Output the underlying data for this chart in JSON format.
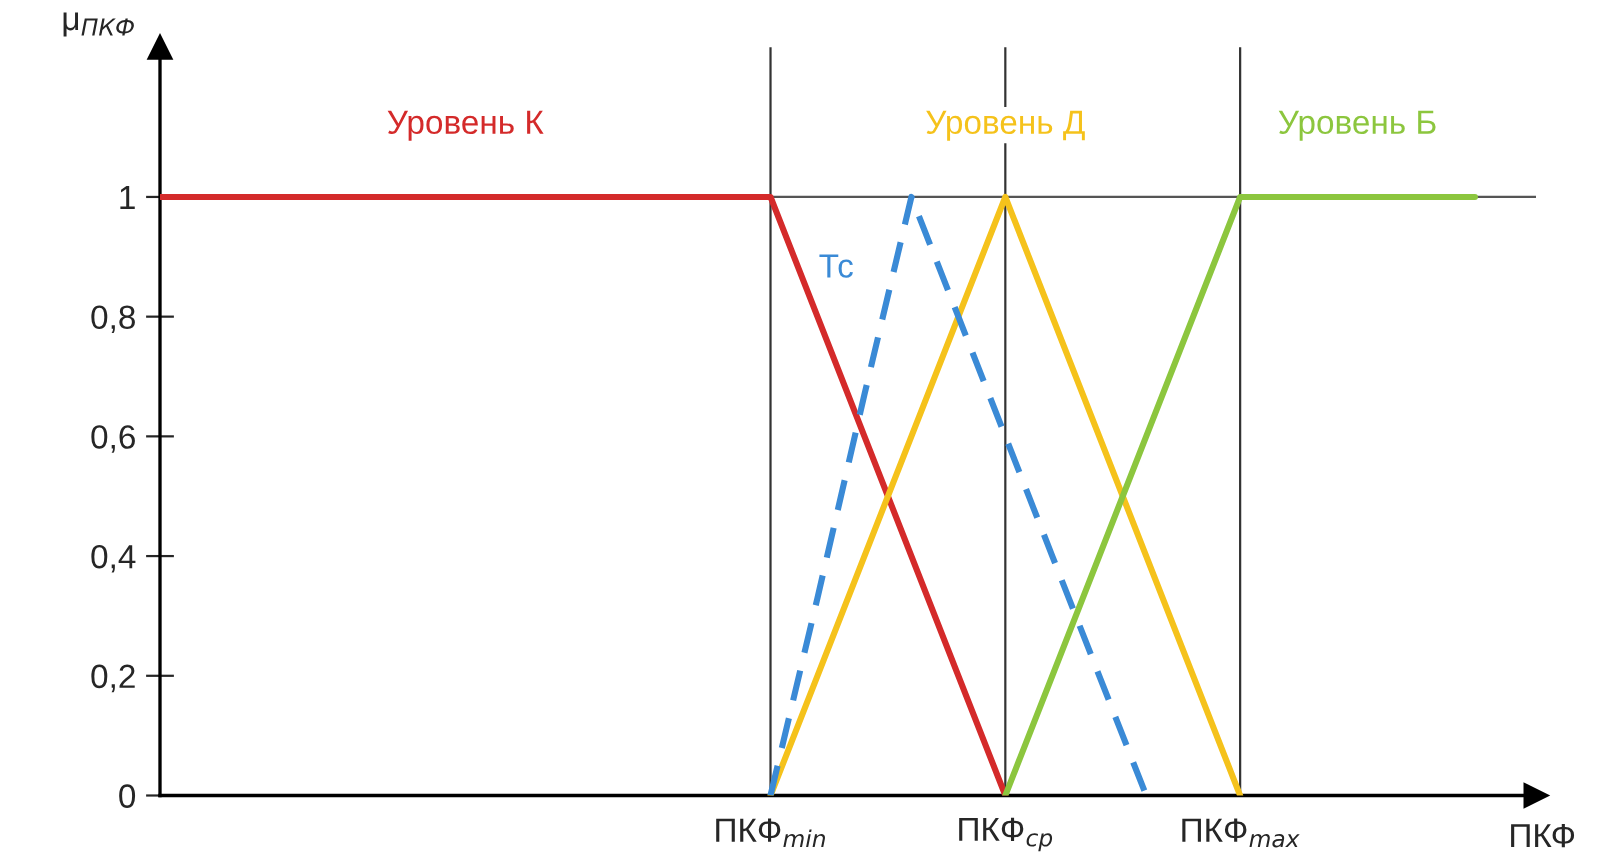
{
  "chart_data": {
    "type": "line",
    "ylabel": "μ$_{ПКФ}$",
    "xlabel": "ПКФ",
    "categories": [
      null,
      null,
      null,
      null,
      null,
      null,
      null,
      null,
      null,
      null,
      null,
      null,
      null,
      "ПКФ$_{min}$",
      null,
      null,
      null,
      null,
      "ПКФ$_{ср}$",
      null,
      null,
      null,
      null,
      "ПКФ$_{max}$",
      null,
      null,
      null,
      null,
      null
    ],
    "series": [
      {
        "name": "Уровень К",
        "color": "#d42a2a",
        "values": [
          1,
          1,
          1,
          1,
          1,
          1,
          1,
          1,
          1,
          1,
          1,
          1,
          1,
          1,
          0.8,
          0.6,
          0.4,
          0.2,
          0,
          null,
          null,
          null,
          null,
          null,
          null,
          null,
          null,
          null,
          null
        ]
      },
      {
        "name": "Уровень Д",
        "color": "#f5c21b",
        "values": [
          null,
          null,
          null,
          null,
          null,
          null,
          null,
          null,
          null,
          null,
          null,
          null,
          null,
          0,
          0.2,
          0.4,
          0.6,
          0.8,
          1,
          0.8,
          0.6,
          0.4,
          0.2,
          0,
          null,
          null,
          null,
          null,
          null
        ]
      },
      {
        "name": "Уровень Б",
        "color": "#8cc63e",
        "values": [
          null,
          null,
          null,
          null,
          null,
          null,
          null,
          null,
          null,
          null,
          null,
          null,
          null,
          null,
          null,
          null,
          null,
          null,
          0,
          0.2,
          0.4,
          0.6,
          0.8,
          1,
          1,
          1,
          1,
          1,
          1
        ]
      },
      {
        "name": "Тс",
        "color": "#3a8ad6",
        "values": [
          null,
          null,
          null,
          null,
          null,
          null,
          null,
          null,
          null,
          null,
          null,
          null,
          null,
          0,
          0.33,
          0.67,
          1,
          0.8,
          0.6,
          0.4,
          0.2,
          0,
          null,
          null,
          null,
          null,
          null,
          null,
          null
        ],
        "line_style": "dashed"
      }
    ],
    "ylim": [
      0,
      1.25
    ],
    "yticks": [
      0,
      {
        "value": 0.2,
        "label": "0,2"
      },
      {
        "value": 0.4,
        "label": "0,4"
      },
      {
        "value": 0.6,
        "label": "0,6"
      },
      {
        "value": 0.8,
        "label": "0,8"
      },
      1
    ],
    "ref_lines": [
      {
        "axis": "y",
        "value": 1,
        "color": "#555555"
      }
    ],
    "grid": "x",
    "legend": false,
    "marker": "none",
    "line_style": "solid"
  }
}
